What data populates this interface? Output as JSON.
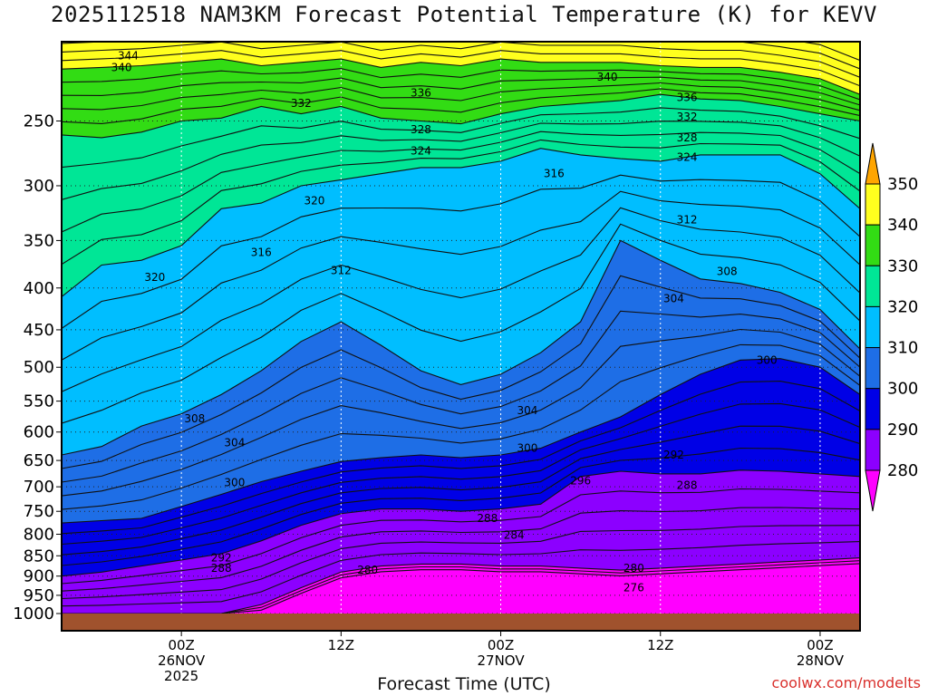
{
  "title": "2025112518 NAM3KM Forecast Potential Temperature (K) for KEVV",
  "credit": "coolwx.com/modelts",
  "chart_data": {
    "type": "heatmap",
    "title": "2025112518 NAM3KM Forecast Potential Temperature (K) for KEVV",
    "xlabel": "Forecast Time (UTC)",
    "ylabel": "",
    "x_unit": "forecast hour from 2025-11-25 18Z",
    "xlim": [
      -3,
      57
    ],
    "y_scale": "log",
    "ylim": [
      1000,
      200
    ],
    "grid": true,
    "y_ticks": [
      250,
      300,
      350,
      400,
      450,
      500,
      550,
      600,
      650,
      700,
      750,
      800,
      850,
      900,
      950,
      1000
    ],
    "x_ticks": [
      {
        "hour": 6,
        "label": [
          "00Z",
          "26NOV",
          "2025"
        ]
      },
      {
        "hour": 18,
        "label": [
          "12Z"
        ]
      },
      {
        "hour": 30,
        "label": [
          "00Z",
          "27NOV"
        ]
      },
      {
        "hour": 42,
        "label": [
          "12Z"
        ]
      },
      {
        "hour": 54,
        "label": [
          "00Z",
          "28NOV"
        ]
      }
    ],
    "colorbar": {
      "ticks": [
        280,
        290,
        300,
        310,
        320,
        330,
        340,
        350
      ],
      "colors": [
        {
          "range": "<280",
          "color": "#ff00ff"
        },
        {
          "range": "280-290",
          "color": "#8c00ff"
        },
        {
          "range": "290-300",
          "color": "#0000e6"
        },
        {
          "range": "300-310",
          "color": "#1e6ee6"
        },
        {
          "range": "310-320",
          "color": "#00beff"
        },
        {
          "range": "320-330",
          "color": "#00e696"
        },
        {
          "range": "330-340",
          "color": "#32dc14"
        },
        {
          "range": ">340",
          "color": "#ffff1e"
        }
      ],
      "over_color": "#ffa500"
    },
    "isentropes_hPa_by_hour": {
      "hours": [
        -3,
        0,
        3,
        6,
        9,
        12,
        15,
        18,
        21,
        24,
        27,
        30,
        33,
        36,
        39,
        42,
        45,
        48,
        51,
        54,
        57
      ],
      "levels": [
        {
          "theta": 280,
          "p": [
            1000,
            1000,
            1000,
            1000,
            1000,
            975,
            930,
            890,
            875,
            870,
            870,
            875,
            875,
            880,
            885,
            880,
            875,
            870,
            865,
            860,
            855
          ]
        },
        {
          "theta": 290,
          "p": [
            900,
            890,
            875,
            860,
            845,
            815,
            780,
            755,
            745,
            745,
            750,
            745,
            735,
            680,
            670,
            675,
            675,
            668,
            670,
            675,
            680
          ]
        },
        {
          "theta": 300,
          "p": [
            775,
            770,
            765,
            740,
            715,
            690,
            670,
            652,
            645,
            640,
            645,
            640,
            628,
            600,
            575,
            540,
            510,
            490,
            488,
            500,
            540
          ]
        },
        {
          "theta": 310,
          "p": [
            640,
            625,
            590,
            570,
            540,
            505,
            465,
            440,
            470,
            505,
            525,
            510,
            480,
            440,
            350,
            370,
            390,
            395,
            405,
            425,
            475
          ]
        },
        {
          "theta": 320,
          "p": [
            410,
            375,
            370,
            355,
            320,
            315,
            300,
            295,
            290,
            285,
            285,
            280,
            270,
            275,
            278,
            280,
            275,
            275,
            275,
            290,
            320
          ]
        },
        {
          "theta": 330,
          "p": [
            260,
            262,
            258,
            250,
            248,
            240,
            245,
            240,
            248,
            250,
            252,
            245,
            240,
            238,
            236,
            232,
            235,
            236,
            240,
            245,
            250
          ]
        },
        {
          "theta": 340,
          "p": [
            216,
            215,
            214,
            212,
            210,
            214,
            212,
            210,
            215,
            212,
            214,
            210,
            212,
            212,
            212,
            214,
            215,
            215,
            218,
            222,
            232
          ]
        }
      ]
    },
    "contour_labels": [
      {
        "text": "344",
        "hour": 2,
        "p": 208
      },
      {
        "text": "340",
        "hour": 1.5,
        "p": 215
      },
      {
        "text": "336",
        "hour": 24,
        "p": 231
      },
      {
        "text": "332",
        "hour": 15,
        "p": 238
      },
      {
        "text": "328",
        "hour": 24,
        "p": 256
      },
      {
        "text": "324",
        "hour": 24,
        "p": 272
      },
      {
        "text": "340",
        "hour": 38,
        "p": 221
      },
      {
        "text": "336",
        "hour": 44,
        "p": 234
      },
      {
        "text": "332",
        "hour": 44,
        "p": 247
      },
      {
        "text": "328",
        "hour": 44,
        "p": 262
      },
      {
        "text": "324",
        "hour": 44,
        "p": 277
      },
      {
        "text": "320",
        "hour": 16,
        "p": 313
      },
      {
        "text": "316",
        "hour": 34,
        "p": 290
      },
      {
        "text": "312",
        "hour": 44,
        "p": 330
      },
      {
        "text": "308",
        "hour": 47,
        "p": 382
      },
      {
        "text": "316",
        "hour": 12,
        "p": 362
      },
      {
        "text": "320",
        "hour": 4,
        "p": 388
      },
      {
        "text": "312",
        "hour": 18,
        "p": 381
      },
      {
        "text": "304",
        "hour": 43,
        "p": 412
      },
      {
        "text": "300",
        "hour": 50,
        "p": 490
      },
      {
        "text": "308",
        "hour": 7,
        "p": 578
      },
      {
        "text": "304",
        "hour": 10,
        "p": 618
      },
      {
        "text": "304",
        "hour": 32,
        "p": 565
      },
      {
        "text": "300",
        "hour": 32,
        "p": 628
      },
      {
        "text": "300",
        "hour": 10,
        "p": 692
      },
      {
        "text": "296",
        "hour": 36,
        "p": 688
      },
      {
        "text": "292",
        "hour": 43,
        "p": 640
      },
      {
        "text": "288",
        "hour": 44,
        "p": 697
      },
      {
        "text": "288",
        "hour": 29,
        "p": 765
      },
      {
        "text": "284",
        "hour": 31,
        "p": 802
      },
      {
        "text": "292",
        "hour": 9,
        "p": 855
      },
      {
        "text": "288",
        "hour": 9,
        "p": 880
      },
      {
        "text": "280",
        "hour": 20,
        "p": 885
      },
      {
        "text": "280",
        "hour": 40,
        "p": 880
      },
      {
        "text": "276",
        "hour": 40,
        "p": 930
      }
    ]
  },
  "x_ticks_text": {
    "t1a": "00Z",
    "t1b": "26NOV",
    "t1c": "2025",
    "t2a": "12Z",
    "t3a": "00Z",
    "t3b": "27NOV",
    "t4a": "12Z",
    "t5a": "00Z",
    "t5b": "28NOV"
  },
  "y_ticks_text": [
    "250",
    "300",
    "350",
    "400",
    "450",
    "500",
    "550",
    "600",
    "650",
    "700",
    "750",
    "800",
    "850",
    "900",
    "950",
    "1000"
  ],
  "colorbar_text": [
    "280",
    "290",
    "300",
    "310",
    "320",
    "330",
    "340",
    "350"
  ]
}
